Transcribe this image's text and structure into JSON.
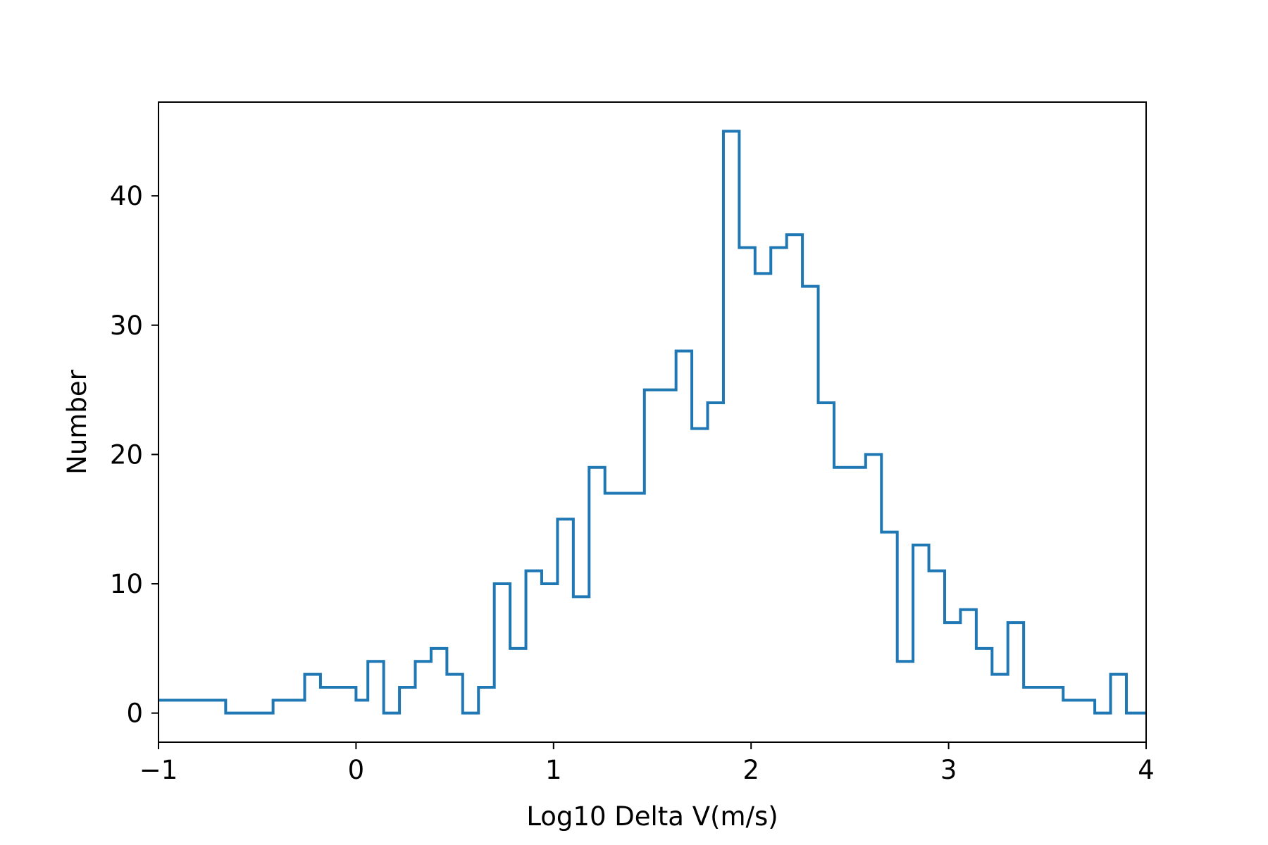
{
  "chart_data": {
    "type": "histogram",
    "title": "",
    "xlabel": "Log10 Delta V(m/s)",
    "ylabel": "Number",
    "xlim": [
      -1,
      4
    ],
    "ylim": [
      -2.25,
      47.25
    ],
    "grid": false,
    "legend": "none",
    "x_ticks": [
      {
        "value": -1,
        "label": "−1"
      },
      {
        "value": 0,
        "label": "0"
      },
      {
        "value": 1,
        "label": "1"
      },
      {
        "value": 2,
        "label": "2"
      },
      {
        "value": 3,
        "label": "3"
      },
      {
        "value": 4,
        "label": "4"
      }
    ],
    "y_ticks": [
      {
        "value": 0,
        "label": "0"
      },
      {
        "value": 10,
        "label": "10"
      },
      {
        "value": 20,
        "label": "20"
      },
      {
        "value": 30,
        "label": "30"
      },
      {
        "value": 40,
        "label": "40"
      }
    ],
    "series": [
      {
        "color": "#1f77b4",
        "bin_edges": [
          -1.0,
          -0.66,
          -0.42,
          -0.26,
          -0.18,
          0.0,
          0.06,
          0.14,
          0.22,
          0.3,
          0.38,
          0.46,
          0.54,
          0.62,
          0.7,
          0.78,
          0.86,
          0.94,
          1.02,
          1.1,
          1.18,
          1.26,
          1.46,
          1.62,
          1.7,
          1.78,
          1.86,
          1.94,
          2.02,
          2.1,
          2.18,
          2.26,
          2.34,
          2.42,
          2.58,
          2.66,
          2.74,
          2.82,
          2.9,
          2.98,
          3.06,
          3.14,
          3.22,
          3.3,
          3.38,
          3.58,
          3.74,
          3.82,
          3.9,
          4.0
        ],
        "counts": [
          1,
          0,
          1,
          3,
          2,
          1,
          4,
          0,
          2,
          4,
          5,
          3,
          0,
          2,
          10,
          5,
          11,
          10,
          15,
          9,
          19,
          17,
          25,
          28,
          22,
          24,
          45,
          36,
          34,
          36,
          37,
          33,
          24,
          19,
          20,
          14,
          4,
          13,
          11,
          7,
          8,
          5,
          3,
          7,
          2,
          1,
          0,
          3,
          0
        ]
      }
    ]
  }
}
